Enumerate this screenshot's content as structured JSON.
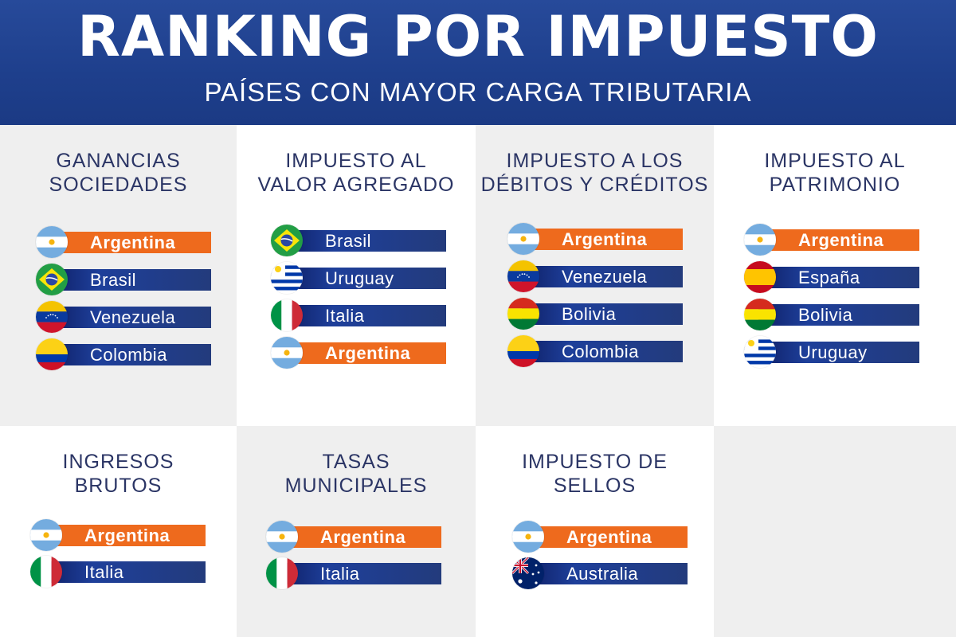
{
  "header": {
    "title": "RANKING POR IMPUESTO",
    "subtitle": "PAÍSES CON MAYOR CARGA TRIBUTARIA"
  },
  "colors": {
    "header_blue": "#1e3f8c",
    "highlight_orange": "#ee6a1d",
    "bar_blue": "#1e3f9a",
    "title_text": "#2b3565"
  },
  "categories": [
    {
      "title": "GANANCIAS\nSOCIEDADES",
      "countries": [
        {
          "name": "Argentina",
          "flag": "argentina-flag-icon",
          "highlight": true
        },
        {
          "name": "Brasil",
          "flag": "brazil-flag-icon",
          "highlight": false
        },
        {
          "name": "Venezuela",
          "flag": "venezuela-flag-icon",
          "highlight": false
        },
        {
          "name": "Colombia",
          "flag": "colombia-flag-icon",
          "highlight": false
        }
      ]
    },
    {
      "title": "IMPUESTO AL\nVALOR AGREGADO",
      "countries": [
        {
          "name": "Brasil",
          "flag": "brazil-flag-icon",
          "highlight": false
        },
        {
          "name": "Uruguay",
          "flag": "uruguay-flag-icon",
          "highlight": false
        },
        {
          "name": "Italia",
          "flag": "italy-flag-icon",
          "highlight": false
        },
        {
          "name": "Argentina",
          "flag": "argentina-flag-icon",
          "highlight": true
        }
      ]
    },
    {
      "title": "IMPUESTO A LOS\nDÉBITOS Y CRÉDITOS",
      "countries": [
        {
          "name": "Argentina",
          "flag": "argentina-flag-icon",
          "highlight": true
        },
        {
          "name": "Venezuela",
          "flag": "venezuela-flag-icon",
          "highlight": false
        },
        {
          "name": "Bolivia",
          "flag": "bolivia-flag-icon",
          "highlight": false
        },
        {
          "name": "Colombia",
          "flag": "colombia-flag-icon",
          "highlight": false
        }
      ]
    },
    {
      "title": "IMPUESTO AL\nPATRIMONIO",
      "countries": [
        {
          "name": "Argentina",
          "flag": "argentina-flag-icon",
          "highlight": true
        },
        {
          "name": "España",
          "flag": "spain-flag-icon",
          "highlight": false
        },
        {
          "name": "Bolivia",
          "flag": "bolivia-flag-icon",
          "highlight": false
        },
        {
          "name": "Uruguay",
          "flag": "uruguay-flag-icon",
          "highlight": false
        }
      ]
    },
    {
      "title": "INGRESOS\nBRUTOS",
      "countries": [
        {
          "name": "Argentina",
          "flag": "argentina-flag-icon",
          "highlight": true
        },
        {
          "name": "Italia",
          "flag": "italy-flag-icon",
          "highlight": false
        }
      ]
    },
    {
      "title": "TASAS\nMUNICIPALES",
      "countries": [
        {
          "name": "Argentina",
          "flag": "argentina-flag-icon",
          "highlight": true
        },
        {
          "name": "Italia",
          "flag": "italy-flag-icon",
          "highlight": false
        }
      ]
    },
    {
      "title": "IMPUESTO DE\nSELLOS",
      "countries": [
        {
          "name": "Argentina",
          "flag": "argentina-flag-icon",
          "highlight": true
        },
        {
          "name": "Australia",
          "flag": "australia-flag-icon",
          "highlight": false
        }
      ]
    }
  ]
}
